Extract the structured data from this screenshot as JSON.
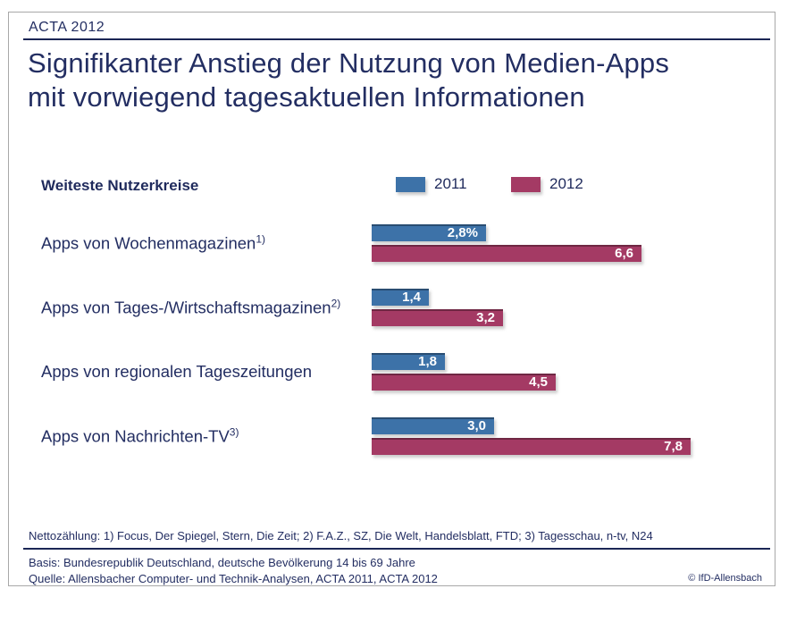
{
  "header": {
    "label": "ACTA 2012"
  },
  "title": {
    "line1": "Signifikanter Anstieg der Nutzung von Medien-Apps",
    "line2": "mit vorwiegend tagesaktuellen Informationen"
  },
  "chart_data": {
    "type": "bar",
    "orientation": "horizontal",
    "legend_title": "Weiteste Nutzerkreise",
    "legend_position": "top",
    "unit": "%",
    "xlim": [
      0,
      8
    ],
    "grid": false,
    "categories": [
      {
        "label": "Apps von Wochenmagazinen",
        "footnote_ref": "1)"
      },
      {
        "label": "Apps von Tages-/Wirtschaftsmagazinen",
        "footnote_ref": "2)"
      },
      {
        "label": "Apps von regionalen Tageszeitungen",
        "footnote_ref": ""
      },
      {
        "label": "Apps von Nachrichten-TV",
        "footnote_ref": "3)"
      }
    ],
    "series": [
      {
        "name": "2011",
        "color": "#3d72a8",
        "values": [
          2.8,
          1.4,
          1.8,
          3.0
        ],
        "value_labels": [
          "2,8%",
          "1,4",
          "1,8",
          "3,0"
        ]
      },
      {
        "name": "2012",
        "color": "#a43a64",
        "values": [
          6.6,
          3.2,
          4.5,
          7.8
        ],
        "value_labels": [
          "6,6",
          "3,2",
          "4,5",
          "7,8"
        ]
      }
    ]
  },
  "footer": {
    "note": "Nettozählung: 1) Focus, Der Spiegel, Stern, Die Zeit; 2) F.A.Z., SZ, Die Welt, Handelsblatt, FTD; 3) Tagesschau, n-tv, N24",
    "basis": "Basis: Bundesrepublik Deutschland, deutsche Bevölkerung 14 bis 69 Jahre",
    "quelle": "Quelle: Allensbacher Computer- und Technik-Analysen, ACTA 2011, ACTA 2012",
    "copyright": "© IfD-Allensbach"
  },
  "colors": {
    "navy_text": "#232e62",
    "rule_navy": "#1b2655",
    "bar_2011": "#3d72a8",
    "bar_2012": "#a43a64",
    "frame_border": "#a8a8a8"
  }
}
